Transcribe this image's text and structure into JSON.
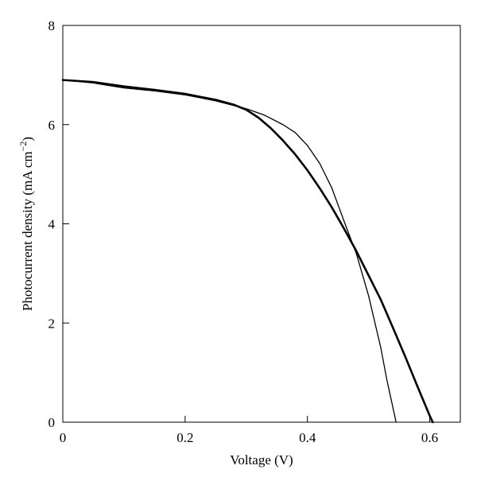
{
  "chart_data": {
    "type": "line",
    "xlabel": "Voltage (V)",
    "ylabel_main": "Photocurrent density (mA cm",
    "ylabel_sup": "−2",
    "ylabel_close": ")",
    "xlim": [
      0,
      0.65
    ],
    "ylim": [
      0,
      8
    ],
    "x_ticks": [
      0,
      0.2,
      0.4,
      0.6
    ],
    "x_tick_labels": [
      "0",
      "0.2",
      "0.4",
      "0.6"
    ],
    "y_ticks": [
      0,
      2,
      4,
      6,
      8
    ],
    "y_tick_labels": [
      "0",
      "2",
      "4",
      "6",
      "8"
    ],
    "grid": false,
    "series": [
      {
        "style": "thin",
        "stroke_width": 1.3,
        "color": "#000000",
        "points": [
          [
            0,
            6.9
          ],
          [
            0.05,
            6.84
          ],
          [
            0.1,
            6.74
          ],
          [
            0.15,
            6.68
          ],
          [
            0.2,
            6.6
          ],
          [
            0.25,
            6.48
          ],
          [
            0.3,
            6.32
          ],
          [
            0.33,
            6.19
          ],
          [
            0.36,
            6.0
          ],
          [
            0.38,
            5.84
          ],
          [
            0.4,
            5.58
          ],
          [
            0.42,
            5.22
          ],
          [
            0.44,
            4.72
          ],
          [
            0.46,
            4.05
          ],
          [
            0.48,
            3.4
          ],
          [
            0.5,
            2.55
          ],
          [
            0.52,
            1.5
          ],
          [
            0.53,
            0.85
          ],
          [
            0.545,
            0
          ]
        ]
      },
      {
        "style": "thick",
        "stroke_width": 2.6,
        "color": "#000000",
        "points": [
          [
            0,
            6.9
          ],
          [
            0.05,
            6.86
          ],
          [
            0.1,
            6.77
          ],
          [
            0.15,
            6.7
          ],
          [
            0.2,
            6.62
          ],
          [
            0.25,
            6.5
          ],
          [
            0.28,
            6.4
          ],
          [
            0.3,
            6.3
          ],
          [
            0.32,
            6.14
          ],
          [
            0.34,
            5.93
          ],
          [
            0.36,
            5.68
          ],
          [
            0.38,
            5.4
          ],
          [
            0.4,
            5.08
          ],
          [
            0.42,
            4.72
          ],
          [
            0.44,
            4.33
          ],
          [
            0.46,
            3.9
          ],
          [
            0.48,
            3.45
          ],
          [
            0.5,
            2.96
          ],
          [
            0.52,
            2.47
          ],
          [
            0.54,
            1.9
          ],
          [
            0.56,
            1.32
          ],
          [
            0.58,
            0.72
          ],
          [
            0.6,
            0.13
          ],
          [
            0.605,
            0
          ]
        ]
      }
    ]
  }
}
